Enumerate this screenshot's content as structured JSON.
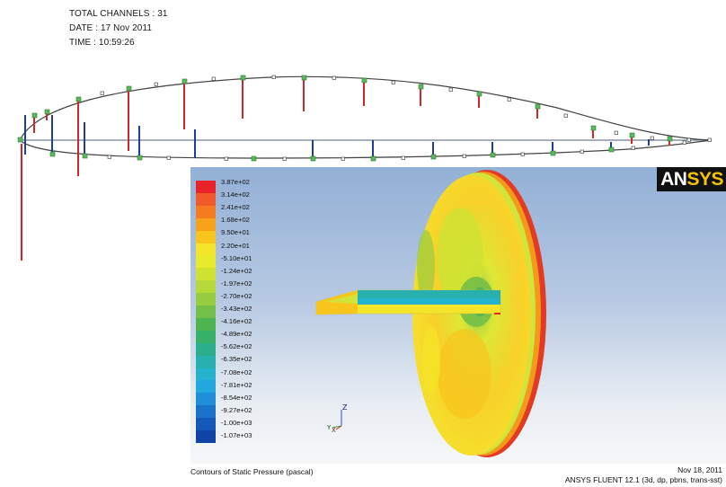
{
  "header": {
    "channels": "TOTAL CHANNELS : 31",
    "date": "DATE : 17 Nov 2011",
    "time": "TIME : 10:59:26"
  },
  "legend": {
    "labels": [
      "3.87e+02",
      "3.14e+02",
      "2.41e+02",
      "1.68e+02",
      "9.50e+01",
      "2.20e+01",
      "-5.10e+01",
      "-1.24e+02",
      "-1.97e+02",
      "-2.70e+02",
      "-3.43e+02",
      "-4.16e+02",
      "-4.89e+02",
      "-5.62e+02",
      "-6.35e+02",
      "-7.08e+02",
      "-7.81e+02",
      "-8.54e+02",
      "-9.27e+02",
      "-1.00e+03",
      "-1.07e+03"
    ],
    "colors": [
      "#e8242a",
      "#f05a28",
      "#f47b20",
      "#f7a21b",
      "#f8c51c",
      "#f5e52a",
      "#e6ec2c",
      "#cfe232",
      "#b6d838",
      "#98cc40",
      "#74bf48",
      "#4fb34f",
      "#37b06a",
      "#2aae8c",
      "#27b0ae",
      "#25b2cc",
      "#22a8df",
      "#1e8fd8",
      "#1a73c8",
      "#1559b7",
      "#1244a6"
    ]
  },
  "brand": {
    "logo_a": "AN",
    "logo_b": "SYS"
  },
  "footer": {
    "caption": "Contours of Static Pressure (pascal)",
    "date": "Nov 18, 2011",
    "solver": "ANSYS FLUENT 12.1 (3d, dp, pbns, trans-sst)"
  },
  "axes": {
    "z": "Z",
    "y": "Y",
    "x": "X"
  },
  "colors": {
    "suction_bar": "#d0272c",
    "pressure_bar": "#1f3d9c",
    "outline": "#333333",
    "marker": "#5cb85c"
  }
}
